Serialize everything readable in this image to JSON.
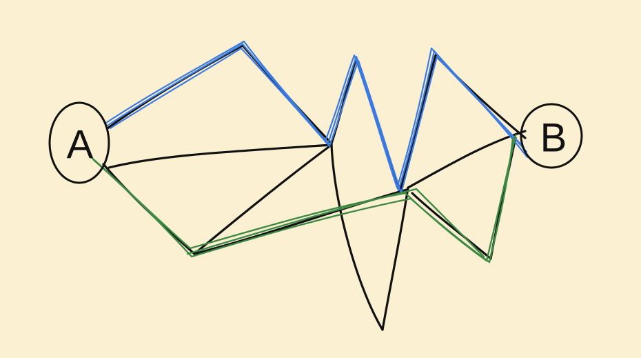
{
  "nodes": {
    "start": {
      "label": "A"
    },
    "end": {
      "label": "B"
    }
  },
  "colors": {
    "background": "#fcf0d3",
    "edge": "#111111",
    "path_blue": "#3b7be0",
    "path_green": "#3e8a45"
  }
}
